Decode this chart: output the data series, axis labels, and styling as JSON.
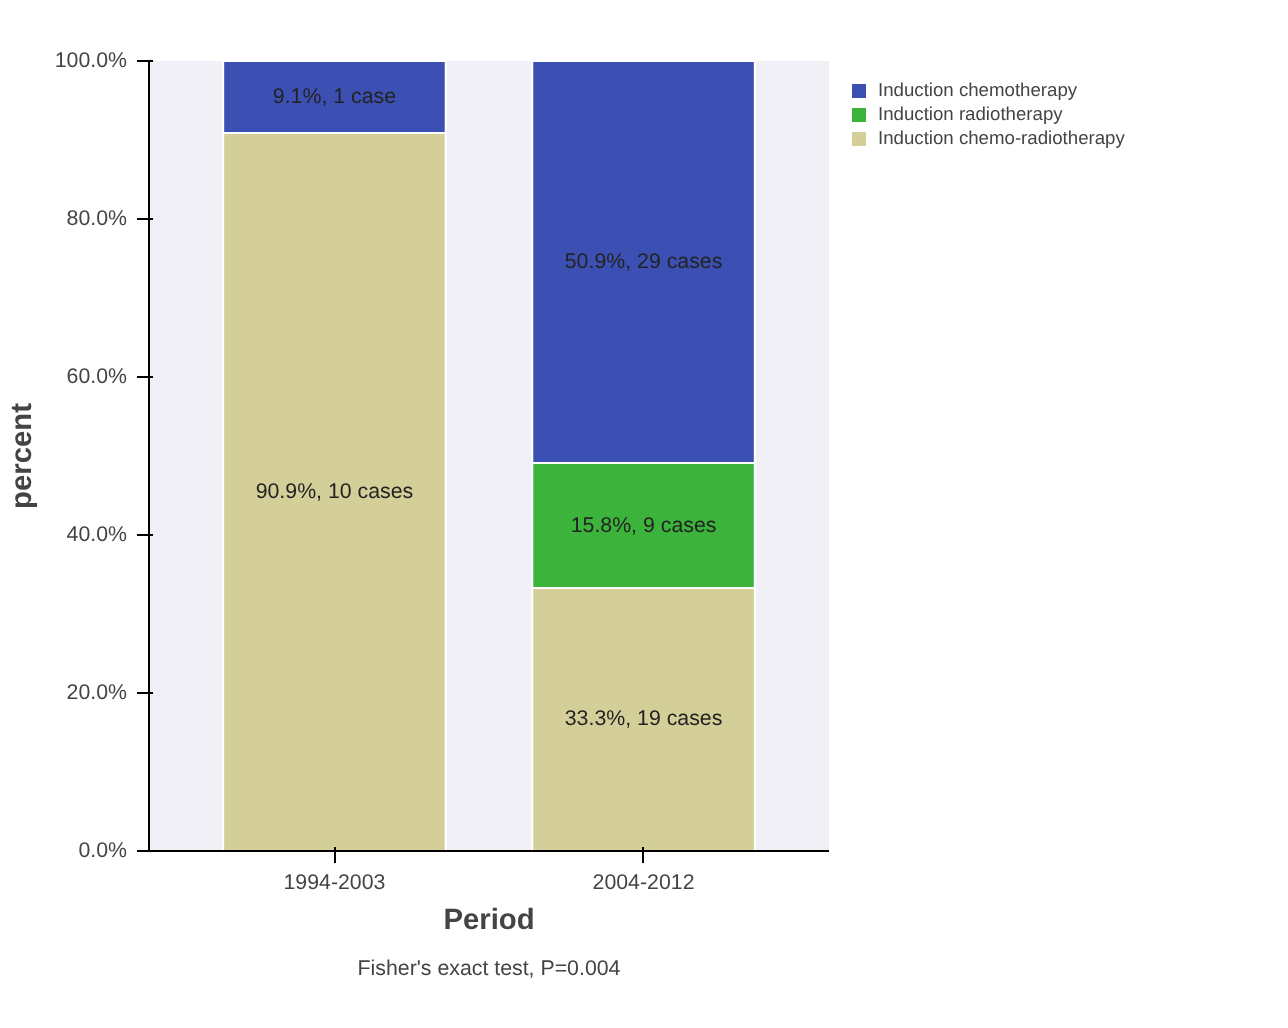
{
  "chart_data": {
    "type": "bar",
    "stacked": true,
    "categories": [
      "1994-2003",
      "2004-2012"
    ],
    "xlabel": "Period",
    "ylabel": "percent",
    "series": [
      {
        "name": "Induction chemo-radiotherapy",
        "color": "#d4cf99",
        "values": [
          90.9,
          33.3
        ],
        "value_labels": [
          "90.9%, 10 cases",
          "33.3%, 19 cases"
        ]
      },
      {
        "name": "Induction radiotherapy",
        "color": "#3cb43c",
        "values": [
          0,
          15.8
        ],
        "value_labels": [
          null,
          "15.8%, 9 cases"
        ]
      },
      {
        "name": "Induction chemotherapy",
        "color": "#3c50b4",
        "values": [
          9.1,
          50.9
        ],
        "value_labels": [
          "9.1%, 1 case",
          "50.9%, 29 cases"
        ]
      }
    ],
    "ylim": [
      0,
      100
    ],
    "yticks": [
      {
        "value": 0,
        "label": "0.0%"
      },
      {
        "value": 20,
        "label": "20.0%"
      },
      {
        "value": 40,
        "label": "40.0%"
      },
      {
        "value": 60,
        "label": "60.0%"
      },
      {
        "value": 80,
        "label": "80.0%"
      },
      {
        "value": 100,
        "label": "100.0%"
      }
    ],
    "legend": "right",
    "grid": false,
    "annotations": [
      "Fisher's exact test, P=0.004"
    ]
  }
}
